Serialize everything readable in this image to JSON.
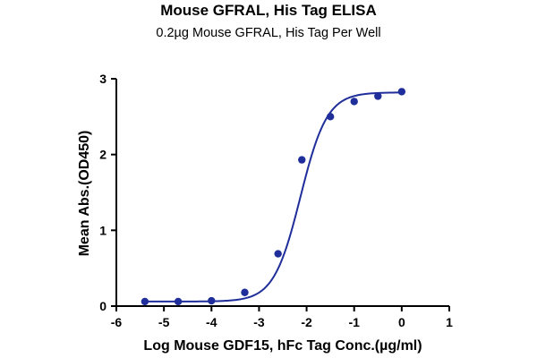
{
  "chart_data": {
    "type": "scatter",
    "title": "Mouse GFRAL, His Tag ELISA",
    "subtitle": "0.2µg Mouse GFRAL, His Tag Per Well",
    "xlabel": "Log Mouse GDF15, hFc Tag Conc.(µg/ml)",
    "ylabel": "Mean Abs.(OD450)",
    "xlim": [
      -6,
      1
    ],
    "ylim": [
      0,
      3
    ],
    "x_ticks": [
      "-6",
      "-5",
      "-4",
      "-3",
      "-2",
      "-1",
      "0",
      "1"
    ],
    "y_ticks": [
      "0",
      "1",
      "2",
      "3"
    ],
    "grid": false,
    "color": "#1f2e9a",
    "series": [
      {
        "x": [
          -5.4,
          -4.7,
          -4.0,
          -3.3,
          -2.6,
          -2.1,
          -1.5,
          -1.0,
          -0.5,
          0.0
        ],
        "y": [
          0.06,
          0.06,
          0.07,
          0.18,
          0.69,
          1.93,
          2.5,
          2.7,
          2.77,
          2.83
        ],
        "fit": "4PL sigmoidal curve"
      }
    ]
  }
}
